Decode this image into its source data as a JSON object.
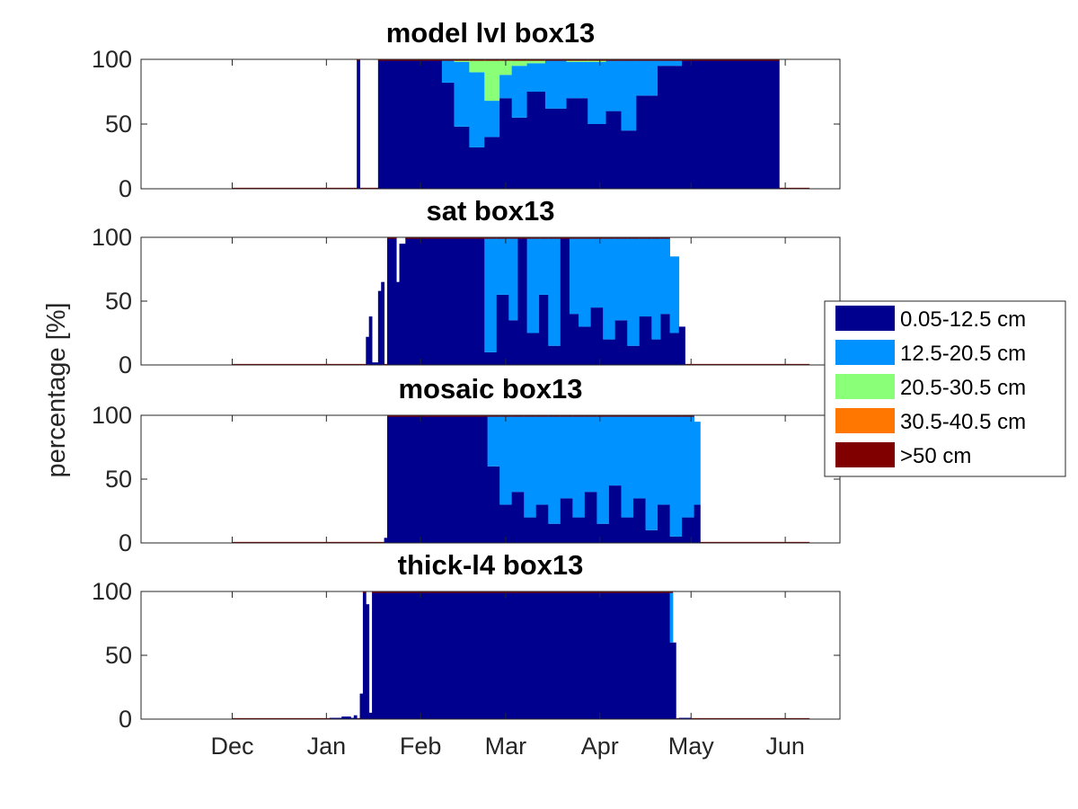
{
  "figure": {
    "ylabel": "percentage [%]"
  },
  "colors": {
    "c1": "#00008f",
    "c2": "#0093ff",
    "c3": "#8aff78",
    "c4": "#ff7600",
    "c5": "#800000"
  },
  "legend": {
    "placement": "right",
    "items": [
      {
        "label": "0.05-12.5 cm",
        "color": "#00008f"
      },
      {
        "label": "12.5-20.5 cm",
        "color": "#0093ff"
      },
      {
        "label": "20.5-30.5 cm",
        "color": "#8aff78"
      },
      {
        "label": "30.5-40.5 cm",
        "color": "#ff7600"
      },
      {
        "label": ">50 cm",
        "color": "#800000"
      }
    ]
  },
  "chart_data": [
    {
      "type": "bar",
      "stacked": true,
      "title": "model lvl box13",
      "xlim": [
        -30,
        200
      ],
      "ylim": [
        0,
        100
      ],
      "yticks": [
        0,
        50,
        100
      ],
      "xtick_labels": [
        {
          "day": 0,
          "label": "Dec"
        },
        {
          "day": 31,
          "label": "Jan"
        },
        {
          "day": 62,
          "label": "Feb"
        },
        {
          "day": 90,
          "label": "Mar"
        },
        {
          "day": 121,
          "label": "Apr"
        },
        {
          "day": 151,
          "label": "May"
        },
        {
          "day": 182,
          "label": "Jun"
        }
      ],
      "segments": [
        {
          "start": 0,
          "end": 41,
          "value": 0
        },
        {
          "start": 41,
          "end": 42,
          "value": 100,
          "c1": 100
        },
        {
          "start": 42,
          "end": 48,
          "value": 0
        },
        {
          "start": 48,
          "end": 69,
          "value": 100,
          "c1": 100
        },
        {
          "start": 69,
          "end": 73,
          "value": 100,
          "c1": 82,
          "c2": 18
        },
        {
          "start": 73,
          "end": 78,
          "value": 100,
          "c1": 48,
          "c2": 50,
          "c3": 2
        },
        {
          "start": 78,
          "end": 83,
          "value": 100,
          "c1": 32,
          "c2": 58,
          "c3": 10
        },
        {
          "start": 83,
          "end": 88,
          "value": 100,
          "c1": 40,
          "c2": 28,
          "c3": 32
        },
        {
          "start": 88,
          "end": 92,
          "value": 100,
          "c1": 70,
          "c2": 18,
          "c3": 12
        },
        {
          "start": 92,
          "end": 97,
          "value": 100,
          "c1": 55,
          "c2": 40,
          "c3": 5
        },
        {
          "start": 97,
          "end": 103,
          "value": 100,
          "c1": 75,
          "c2": 22,
          "c3": 3
        },
        {
          "start": 103,
          "end": 110,
          "value": 100,
          "c1": 62,
          "c2": 38
        },
        {
          "start": 110,
          "end": 117,
          "value": 100,
          "c1": 70,
          "c2": 28,
          "c3": 2
        },
        {
          "start": 117,
          "end": 123,
          "value": 100,
          "c1": 50,
          "c2": 48,
          "c3": 2
        },
        {
          "start": 123,
          "end": 128,
          "value": 100,
          "c1": 60,
          "c2": 40
        },
        {
          "start": 128,
          "end": 133,
          "value": 100,
          "c1": 45,
          "c2": 55
        },
        {
          "start": 133,
          "end": 140,
          "value": 100,
          "c1": 72,
          "c2": 28
        },
        {
          "start": 140,
          "end": 148,
          "value": 100,
          "c1": 95,
          "c2": 5
        },
        {
          "start": 148,
          "end": 180,
          "value": 100,
          "c1": 100
        },
        {
          "start": 180,
          "end": 190,
          "value": 0
        }
      ]
    },
    {
      "type": "bar",
      "stacked": true,
      "title": "sat box13",
      "xlim": [
        -30,
        200
      ],
      "ylim": [
        0,
        100
      ],
      "yticks": [
        0,
        50,
        100
      ],
      "xtick_labels": [
        {
          "day": 0,
          "label": "Dec"
        },
        {
          "day": 31,
          "label": "Jan"
        },
        {
          "day": 62,
          "label": "Feb"
        },
        {
          "day": 90,
          "label": "Mar"
        },
        {
          "day": 121,
          "label": "Apr"
        },
        {
          "day": 151,
          "label": "May"
        },
        {
          "day": 182,
          "label": "Jun"
        }
      ],
      "segments": [
        {
          "start": 0,
          "end": 44,
          "value": 0
        },
        {
          "start": 44,
          "end": 45,
          "value": 22,
          "c1": 22
        },
        {
          "start": 45,
          "end": 46,
          "value": 38,
          "c1": 38
        },
        {
          "start": 46,
          "end": 48,
          "value": 2,
          "c1": 2
        },
        {
          "start": 48,
          "end": 49,
          "value": 58,
          "c1": 58
        },
        {
          "start": 49,
          "end": 50,
          "value": 65,
          "c1": 65
        },
        {
          "start": 50,
          "end": 51,
          "value": 0
        },
        {
          "start": 51,
          "end": 54,
          "value": 100,
          "c1": 100
        },
        {
          "start": 54,
          "end": 55,
          "value": 65,
          "c1": 65
        },
        {
          "start": 55,
          "end": 57,
          "value": 95,
          "c1": 95
        },
        {
          "start": 57,
          "end": 83,
          "value": 100,
          "c1": 100
        },
        {
          "start": 83,
          "end": 87,
          "value": 100,
          "c1": 10,
          "c2": 90
        },
        {
          "start": 87,
          "end": 91,
          "value": 100,
          "c1": 55,
          "c2": 45
        },
        {
          "start": 91,
          "end": 94,
          "value": 100,
          "c1": 35,
          "c2": 65
        },
        {
          "start": 94,
          "end": 97,
          "value": 100,
          "c1": 100
        },
        {
          "start": 97,
          "end": 101,
          "value": 100,
          "c1": 25,
          "c2": 75
        },
        {
          "start": 101,
          "end": 104,
          "value": 100,
          "c1": 55,
          "c2": 45
        },
        {
          "start": 104,
          "end": 108,
          "value": 100,
          "c1": 15,
          "c2": 85
        },
        {
          "start": 108,
          "end": 111,
          "value": 100,
          "c1": 100
        },
        {
          "start": 111,
          "end": 114,
          "value": 100,
          "c1": 40,
          "c2": 60
        },
        {
          "start": 114,
          "end": 118,
          "value": 100,
          "c1": 30,
          "c2": 70
        },
        {
          "start": 118,
          "end": 122,
          "value": 100,
          "c1": 45,
          "c2": 55
        },
        {
          "start": 122,
          "end": 126,
          "value": 100,
          "c1": 20,
          "c2": 80
        },
        {
          "start": 126,
          "end": 130,
          "value": 100,
          "c1": 35,
          "c2": 65
        },
        {
          "start": 130,
          "end": 134,
          "value": 100,
          "c1": 15,
          "c2": 85
        },
        {
          "start": 134,
          "end": 138,
          "value": 100,
          "c1": 38,
          "c2": 62
        },
        {
          "start": 138,
          "end": 141,
          "value": 100,
          "c1": 20,
          "c2": 80
        },
        {
          "start": 141,
          "end": 144,
          "value": 100,
          "c1": 40,
          "c2": 60
        },
        {
          "start": 144,
          "end": 147,
          "value": 85,
          "c1": 25,
          "c2": 60
        },
        {
          "start": 147,
          "end": 149,
          "value": 30,
          "c1": 30
        },
        {
          "start": 149,
          "end": 190,
          "value": 0
        }
      ]
    },
    {
      "type": "bar",
      "stacked": true,
      "title": "mosaic box13",
      "xlim": [
        -30,
        200
      ],
      "ylim": [
        0,
        100
      ],
      "yticks": [
        0,
        50,
        100
      ],
      "xtick_labels": [
        {
          "day": 0,
          "label": "Dec"
        },
        {
          "day": 31,
          "label": "Jan"
        },
        {
          "day": 62,
          "label": "Feb"
        },
        {
          "day": 90,
          "label": "Mar"
        },
        {
          "day": 121,
          "label": "Apr"
        },
        {
          "day": 151,
          "label": "May"
        },
        {
          "day": 182,
          "label": "Jun"
        }
      ],
      "segments": [
        {
          "start": 0,
          "end": 50,
          "value": 0
        },
        {
          "start": 50,
          "end": 51,
          "value": 4,
          "c1": 4
        },
        {
          "start": 51,
          "end": 84,
          "value": 100,
          "c1": 100
        },
        {
          "start": 84,
          "end": 88,
          "value": 100,
          "c1": 60,
          "c2": 40
        },
        {
          "start": 88,
          "end": 92,
          "value": 100,
          "c1": 30,
          "c2": 70
        },
        {
          "start": 92,
          "end": 96,
          "value": 100,
          "c1": 40,
          "c2": 60
        },
        {
          "start": 96,
          "end": 100,
          "value": 100,
          "c1": 20,
          "c2": 80
        },
        {
          "start": 100,
          "end": 104,
          "value": 100,
          "c1": 30,
          "c2": 70
        },
        {
          "start": 104,
          "end": 108,
          "value": 100,
          "c1": 15,
          "c2": 85
        },
        {
          "start": 108,
          "end": 112,
          "value": 100,
          "c1": 35,
          "c2": 65
        },
        {
          "start": 112,
          "end": 116,
          "value": 100,
          "c1": 20,
          "c2": 80
        },
        {
          "start": 116,
          "end": 120,
          "value": 100,
          "c1": 40,
          "c2": 60
        },
        {
          "start": 120,
          "end": 124,
          "value": 100,
          "c1": 15,
          "c2": 85
        },
        {
          "start": 124,
          "end": 128,
          "value": 100,
          "c1": 45,
          "c2": 55
        },
        {
          "start": 128,
          "end": 132,
          "value": 100,
          "c1": 20,
          "c2": 80
        },
        {
          "start": 132,
          "end": 136,
          "value": 100,
          "c1": 35,
          "c2": 65
        },
        {
          "start": 136,
          "end": 140,
          "value": 100,
          "c1": 10,
          "c2": 90
        },
        {
          "start": 140,
          "end": 144,
          "value": 100,
          "c1": 30,
          "c2": 70
        },
        {
          "start": 144,
          "end": 148,
          "value": 100,
          "c1": 5,
          "c2": 95
        },
        {
          "start": 148,
          "end": 152,
          "value": 100,
          "c1": 20,
          "c2": 80
        },
        {
          "start": 152,
          "end": 154,
          "value": 95,
          "c1": 30,
          "c2": 65
        },
        {
          "start": 154,
          "end": 190,
          "value": 0
        }
      ]
    },
    {
      "type": "bar",
      "stacked": true,
      "title": "thick-l4 box13",
      "xlim": [
        -30,
        200
      ],
      "ylim": [
        0,
        100
      ],
      "yticks": [
        0,
        50,
        100
      ],
      "xtick_labels": [
        {
          "day": 0,
          "label": "Dec"
        },
        {
          "day": 31,
          "label": "Jan"
        },
        {
          "day": 62,
          "label": "Feb"
        },
        {
          "day": 90,
          "label": "Mar"
        },
        {
          "day": 121,
          "label": "Apr"
        },
        {
          "day": 151,
          "label": "May"
        },
        {
          "day": 182,
          "label": "Jun"
        }
      ],
      "segments": [
        {
          "start": 0,
          "end": 32,
          "value": 0
        },
        {
          "start": 32,
          "end": 36,
          "value": 1,
          "c1": 1
        },
        {
          "start": 36,
          "end": 39,
          "value": 2,
          "c1": 2
        },
        {
          "start": 39,
          "end": 40,
          "value": 1,
          "c1": 1
        },
        {
          "start": 40,
          "end": 41,
          "value": 3,
          "c1": 3
        },
        {
          "start": 41,
          "end": 42,
          "value": 0
        },
        {
          "start": 42,
          "end": 43,
          "value": 20,
          "c1": 20
        },
        {
          "start": 43,
          "end": 44,
          "value": 100,
          "c1": 100
        },
        {
          "start": 44,
          "end": 45,
          "value": 90,
          "c1": 90
        },
        {
          "start": 45,
          "end": 46,
          "value": 5,
          "c1": 5
        },
        {
          "start": 46,
          "end": 144,
          "value": 100,
          "c1": 100
        },
        {
          "start": 144,
          "end": 145,
          "value": 100,
          "c1": 60,
          "c2": 40
        },
        {
          "start": 145,
          "end": 146,
          "value": 60,
          "c1": 60
        },
        {
          "start": 146,
          "end": 147,
          "value": 0
        },
        {
          "start": 147,
          "end": 151,
          "value": 1,
          "c1": 1
        },
        {
          "start": 151,
          "end": 190,
          "value": 0
        }
      ]
    }
  ]
}
